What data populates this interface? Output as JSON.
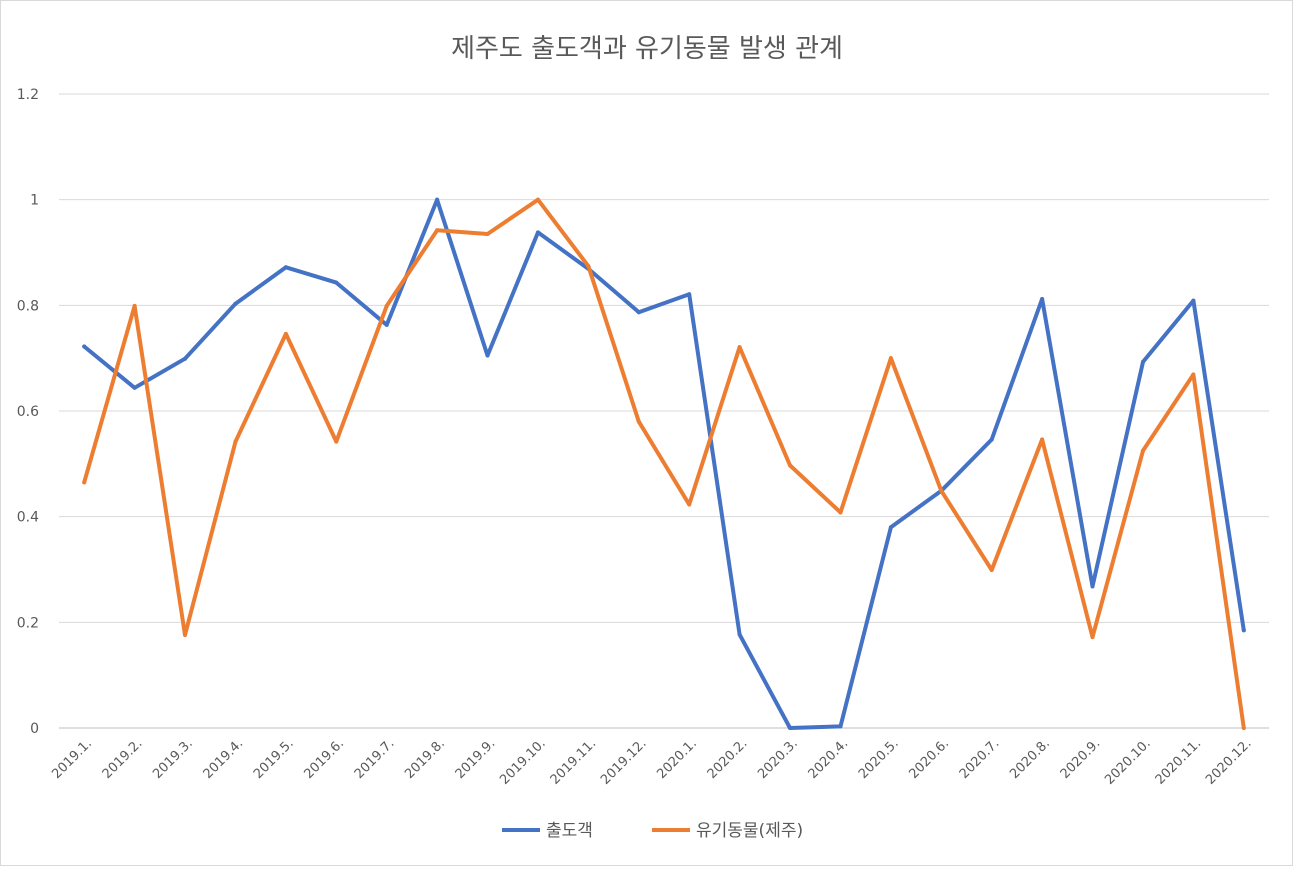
{
  "chart_data": {
    "type": "line",
    "title": "제주도 출도객과 유기동물 발생 관계",
    "xlabel": "",
    "ylabel": "",
    "ylim": [
      0,
      1.2
    ],
    "yticks": [
      "0",
      "0.2",
      "0.4",
      "0.6",
      "0.8",
      "1",
      "1.2"
    ],
    "grid": true,
    "legend_position": "bottom",
    "categories": [
      "2019.1.",
      "2019.2.",
      "2019.3.",
      "2019.4.",
      "2019.5.",
      "2019.6.",
      "2019.7.",
      "2019.8.",
      "2019.9.",
      "2019.10.",
      "2019.11.",
      "2019.12.",
      "2020.1.",
      "2020.2.",
      "2020.3.",
      "2020.4.",
      "2020.5.",
      "2020.6.",
      "2020.7.",
      "2020.8.",
      "2020.9.",
      "2020.10.",
      "2020.11.",
      "2020.12."
    ],
    "series": [
      {
        "name": "출도객",
        "color": "#4472c4",
        "values": [
          0.722,
          0.644,
          0.699,
          0.803,
          0.872,
          0.843,
          0.763,
          1.0,
          0.705,
          0.938,
          0.869,
          0.787,
          0.821,
          0.177,
          0.0,
          0.003,
          0.38,
          0.449,
          0.546,
          0.812,
          0.268,
          0.693,
          0.809,
          0.185
        ]
      },
      {
        "name": "유기동물(제주)",
        "color": "#ed7d31",
        "values": [
          0.465,
          0.799,
          0.176,
          0.542,
          0.746,
          0.542,
          0.799,
          0.942,
          0.935,
          1.0,
          0.874,
          0.58,
          0.423,
          0.721,
          0.497,
          0.408,
          0.7,
          0.449,
          0.299,
          0.546,
          0.172,
          0.525,
          0.669,
          0.0
        ]
      }
    ]
  }
}
